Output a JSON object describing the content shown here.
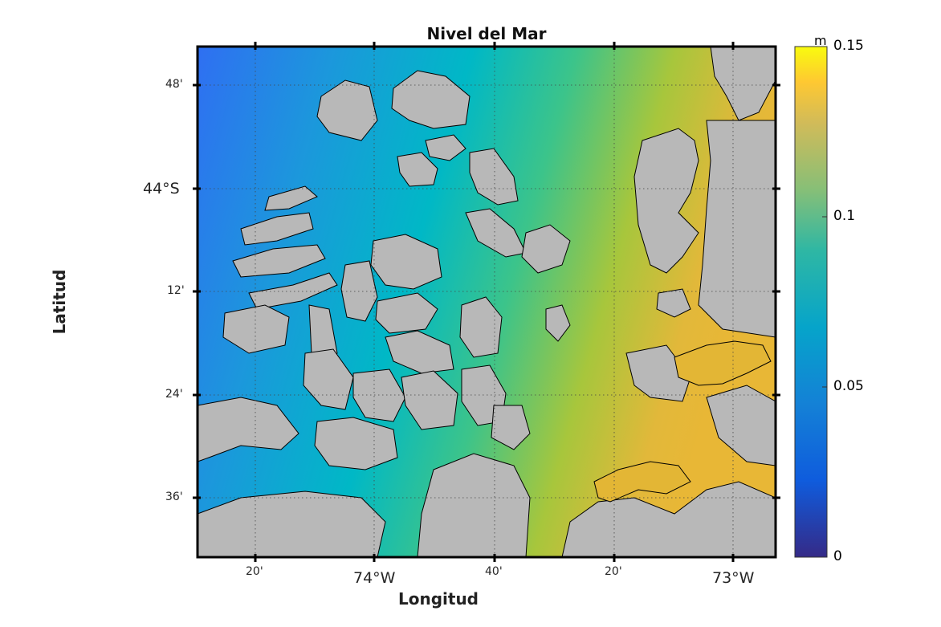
{
  "map": {
    "title": "Nivel del Mar",
    "xlabel": "Longitud",
    "ylabel": "Latitud",
    "lon_ticks": [
      "20'",
      "74°W",
      "40'",
      "20'",
      "73°W"
    ],
    "lat_ticks": [
      "48'",
      "44°S",
      "12'",
      "24'",
      "36'"
    ],
    "grid": true,
    "colors": {
      "land": "#b8b8b8",
      "frame": "#000000",
      "deep_blue": "#2f6ff2",
      "teal": "#00b8c8",
      "green": "#5ccb6a",
      "gold": "#e7b935"
    }
  },
  "colorbar": {
    "unit": "m",
    "ticks": [
      "0.15",
      "0.1",
      "0.05",
      "0"
    ],
    "min": 0,
    "max": 0.15,
    "colormap": "parula"
  }
}
